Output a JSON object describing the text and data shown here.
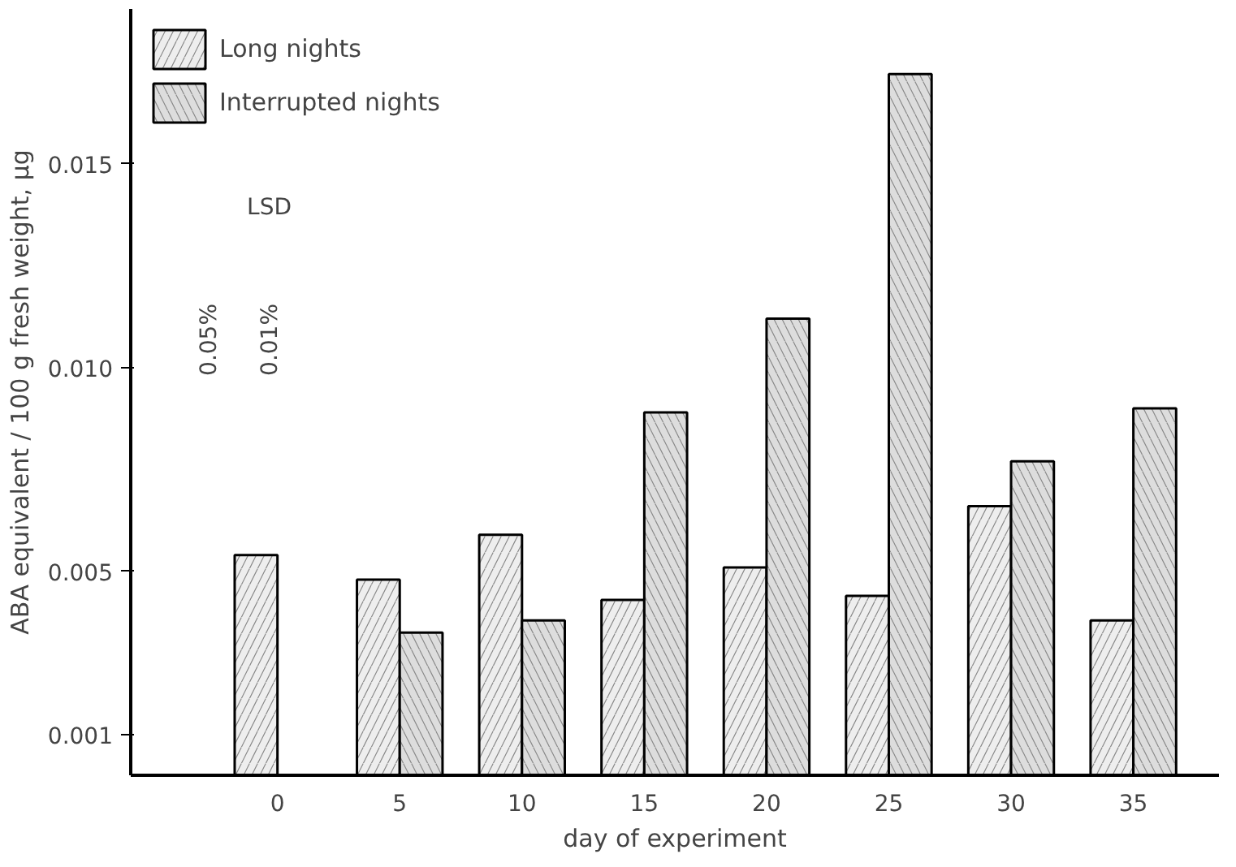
{
  "chart_data": {
    "type": "bar",
    "xlabel": "day of experiment",
    "ylabel": "ABA equivalent / 100 g fresh weight, μg",
    "categories": [
      "0",
      "5",
      "10",
      "15",
      "20",
      "25",
      "30",
      "35"
    ],
    "series": [
      {
        "name": "Long nights",
        "color": "#eeeeee",
        "values": [
          0.0054,
          0.0048,
          0.0059,
          0.0043,
          0.0051,
          0.0044,
          0.0066,
          0.0038
        ]
      },
      {
        "name": "Interrupted nights",
        "color": "#dddddd",
        "values": [
          null,
          0.0035,
          0.0038,
          0.0089,
          0.0112,
          0.0172,
          0.0077,
          0.009
        ]
      }
    ],
    "ylim": [
      0,
      0.0188
    ],
    "yticks": [
      {
        "value": 0.001,
        "label": "0.001"
      },
      {
        "value": 0.005,
        "label": "0.005"
      },
      {
        "value": 0.01,
        "label": "0.010"
      },
      {
        "value": 0.015,
        "label": "0.015"
      }
    ],
    "annotations": [
      "LSD",
      "0.05%",
      "0.01%"
    ],
    "legend": "top left",
    "grid": false
  }
}
